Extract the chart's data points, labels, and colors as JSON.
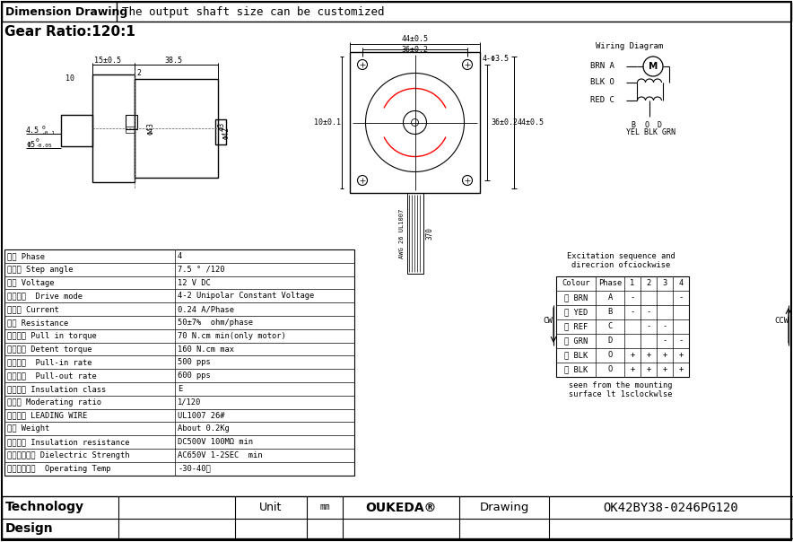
{
  "title_left": "Dimension Drawing",
  "title_right": "The output shaft size can be customized",
  "gear_ratio": "Gear Ratio:120:1",
  "wiring_diagram_title": "Wiring Diagram",
  "bg_color": "#ffffff",
  "table_rows": [
    [
      "相数 Phase",
      "4"
    ],
    [
      "步距角 Step angle",
      "7.5 ° /120"
    ],
    [
      "电压 Voltage",
      "12 V DC"
    ],
    [
      "驱动方式  Drive mode",
      "4-2 Unipolar Constant Voltage"
    ],
    [
      "相电流 Current",
      "0.24 A/Phase"
    ],
    [
      "电阻 Resistance",
      "50±7%  ohm/phase"
    ],
    [
      "起动转矩 Pull in torque",
      "70 N.cm min(only motor)"
    ],
    [
      "定位转矩 Detent torque",
      "160 N.cm max"
    ],
    [
      "起动频率  Pull-in rate",
      "500 pps"
    ],
    [
      "运行频率  Pull-out rate",
      "600 pps"
    ],
    [
      "绵缘等级 Insulation class",
      "E"
    ],
    [
      "减速比 Moderating ratio",
      "1/120"
    ],
    [
      "引线规格 LEADING WIRE",
      "UL1007 26#"
    ],
    [
      "重量 Weight",
      "About 0.2Kg"
    ],
    [
      "绵缘电阻 Insulation resistance",
      "DC500V 100MΩ min"
    ],
    [
      "绵缘介电强度 Dielectric Strength",
      "AC650V 1-2SEC  min"
    ],
    [
      "使用温度范围  Operating Temp",
      "-30-40℃"
    ]
  ],
  "excitation_title1": "Excitation sequence and",
  "excitation_title2": "direcrion ofciockwise",
  "excitation_headers": [
    "Colour",
    "Phase",
    "1",
    "2",
    "3",
    "4"
  ],
  "excitation_rows": [
    [
      "棕 BRN",
      "A",
      "-",
      "",
      "",
      "-"
    ],
    [
      "黄 YED",
      "B",
      "-",
      "-",
      "",
      ""
    ],
    [
      "红 REF",
      "C",
      "",
      "-",
      "-",
      ""
    ],
    [
      "绿 GRN",
      "D",
      "",
      "",
      "-",
      "-"
    ],
    [
      "黑 BLK",
      "O",
      "+",
      "+",
      "+",
      "+"
    ],
    [
      "黑 BLK",
      "O",
      "+",
      "+",
      "+",
      "+"
    ]
  ],
  "fw_cols": [
    130,
    130,
    80,
    40,
    130,
    100,
    272
  ],
  "footer_labels_r1": [
    "Technology",
    "",
    "Unit",
    "mm",
    "OUKEDA®",
    "Drawing",
    "OK42BY38-0246PG120"
  ],
  "footer_labels_r2": [
    "Design",
    "",
    "",
    "",
    "",
    "",
    ""
  ]
}
